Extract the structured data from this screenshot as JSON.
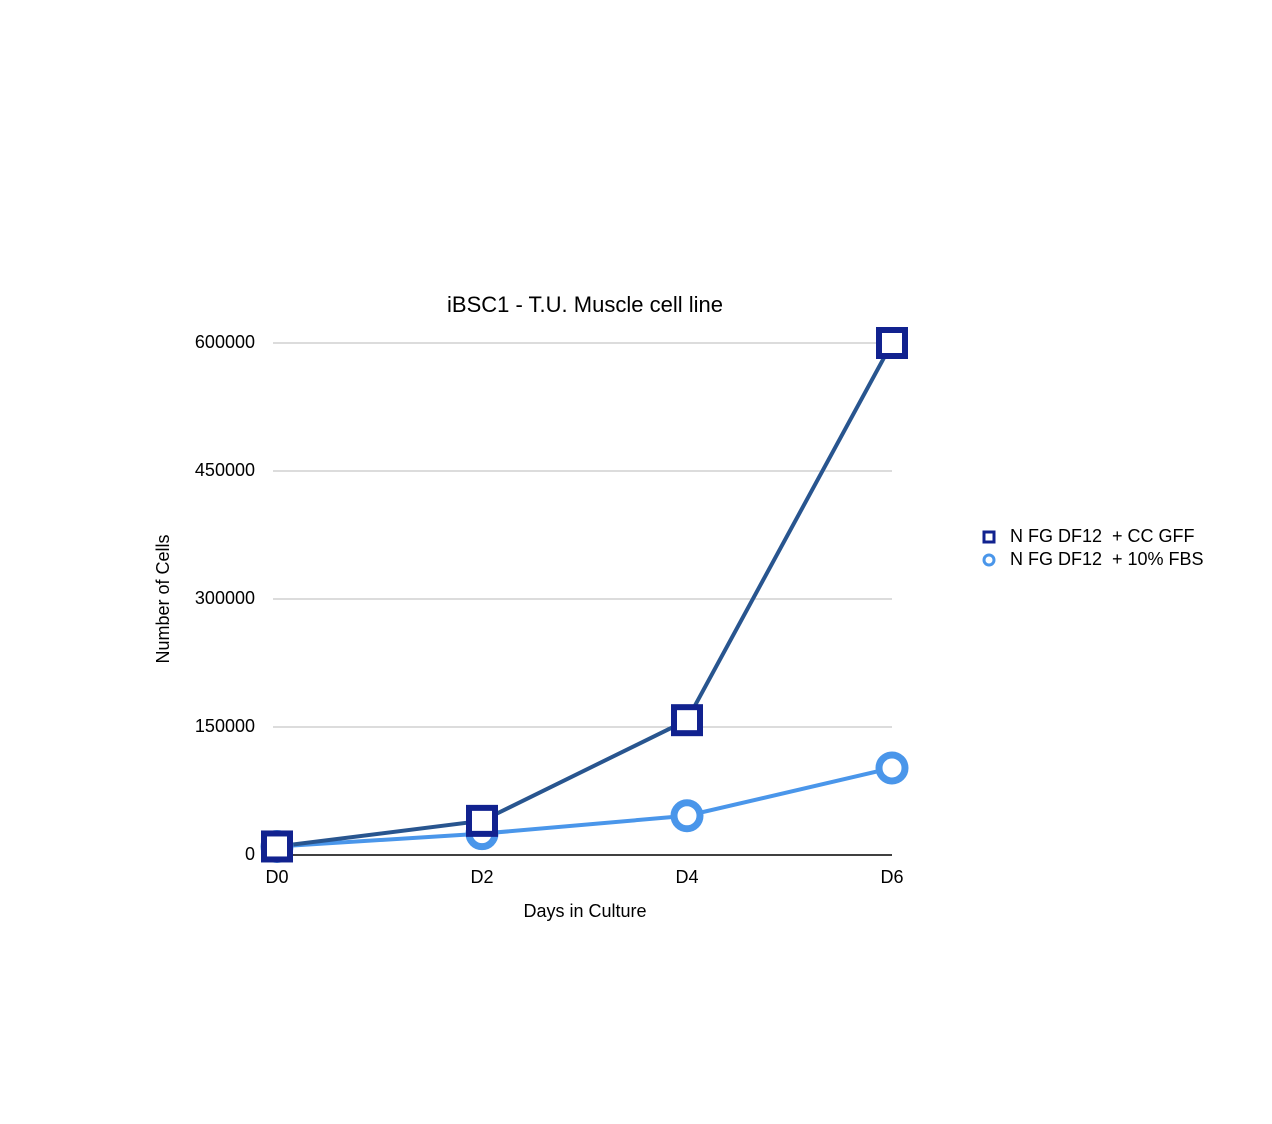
{
  "chart_data": {
    "type": "line",
    "title": "iBSC1 - T.U. Muscle cell line",
    "x_label": "Days in Culture",
    "y_label": "Number of Cells",
    "categories": [
      "D0",
      "D2",
      "D4",
      "D6"
    ],
    "series": [
      {
        "name": "N FG DF12  + CC GFF",
        "color": "#11228f",
        "line_color": "#28558f",
        "marker": "square",
        "values": [
          10000,
          40000,
          158000,
          600000
        ]
      },
      {
        "name": "N FG DF12  + 10% FBS",
        "color": "#4a96ea",
        "line_color": "#4a96ea",
        "marker": "circle",
        "values": [
          10000,
          25000,
          46000,
          102000
        ]
      }
    ],
    "ylim": [
      0,
      600000
    ],
    "yticks": [
      0,
      150000,
      300000,
      450000,
      600000
    ],
    "grid": true,
    "legend": "right"
  }
}
